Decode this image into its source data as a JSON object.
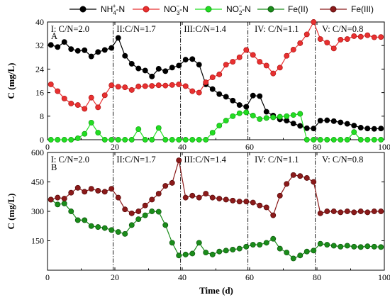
{
  "chart_data": [
    {
      "panel_label": "A",
      "type": "line",
      "ylabel": "C (mg/L)",
      "xlim": [
        0,
        100
      ],
      "ylim": [
        0,
        40
      ],
      "xticks": [
        "0",
        "20",
        "40",
        "60",
        "80",
        "100"
      ],
      "yticks": [
        "0",
        "8",
        "16",
        "24",
        "32",
        "40"
      ],
      "stage_boundaries": [
        19.5,
        39.5,
        59.5,
        79.5
      ],
      "stages": [
        {
          "x": 1,
          "label": "I: C/N=2.0"
        },
        {
          "x": 20.5,
          "label": "II:C/N=1.7"
        },
        {
          "x": 40.5,
          "label": "III:C/N=1.4"
        },
        {
          "x": 61.5,
          "label": "IV: C/N=1.1"
        },
        {
          "x": 81.5,
          "label": "V: C/N=0.8"
        }
      ],
      "series": [
        {
          "name": "NH4+-N",
          "legend_sup": "+",
          "legend_sub": "4",
          "legend_main": "NH",
          "legend_tail": "-N",
          "color": "#000000",
          "x": [
            1,
            3,
            5,
            7,
            9,
            11,
            13,
            15,
            17,
            19,
            21,
            23,
            25,
            27,
            29,
            31,
            33,
            35,
            37,
            39,
            41,
            43,
            45,
            47,
            49,
            51,
            53,
            55,
            57,
            59,
            61,
            63,
            65,
            67,
            69,
            71,
            73,
            75,
            77,
            79,
            81,
            83,
            85,
            87,
            89,
            91,
            93,
            95,
            97,
            99
          ],
          "y": [
            32.2,
            31.5,
            33.2,
            30.8,
            30.2,
            30.4,
            28.3,
            29.8,
            30.5,
            31.2,
            34.6,
            28.5,
            25.8,
            24.2,
            23.5,
            21.5,
            24.1,
            23.3,
            24.5,
            25.2,
            27.2,
            27.4,
            25.5,
            18.8,
            17.2,
            15.5,
            14.6,
            13.3,
            11.8,
            11.2,
            15.0,
            14.8,
            9.5,
            8.2,
            6.9,
            6.5,
            5.5,
            4.7,
            3.9,
            3.8,
            6.5,
            6.6,
            6.3,
            5.9,
            5.4,
            4.8,
            4.1,
            3.8,
            3.7,
            3.8
          ]
        },
        {
          "name": "NO3--N",
          "legend_sup": "−",
          "legend_sub": "3",
          "legend_main": "NO",
          "legend_tail": "-N",
          "color": "#e83030",
          "x": [
            1,
            3,
            5,
            7,
            9,
            11,
            13,
            15,
            17,
            19,
            21,
            23,
            25,
            27,
            29,
            31,
            33,
            35,
            37,
            39,
            41,
            43,
            45,
            47,
            49,
            51,
            53,
            55,
            57,
            59,
            61,
            63,
            65,
            67,
            69,
            71,
            73,
            75,
            77,
            79,
            81,
            83,
            85,
            87,
            89,
            91,
            93,
            95,
            97,
            99
          ],
          "y": [
            18.8,
            16.5,
            14.0,
            12.3,
            11.8,
            10.5,
            14.3,
            11.0,
            15.1,
            18.5,
            18.0,
            17.8,
            16.9,
            18.1,
            18.2,
            18.3,
            18.5,
            18.4,
            18.6,
            18.8,
            18.2,
            16.5,
            16.0,
            19.5,
            21.2,
            22.2,
            25.5,
            26.5,
            28.0,
            30.5,
            28.8,
            26.5,
            25.2,
            22.5,
            24.5,
            28.5,
            30.6,
            32.8,
            35.8,
            40.0,
            34.2,
            33.0,
            31.0,
            34.0,
            34.2,
            35.2,
            35.0,
            35.5,
            34.8,
            34.9
          ]
        },
        {
          "name": "NO2--N",
          "legend_sup": "−",
          "legend_sub": "2",
          "legend_main": "NO",
          "legend_tail": "-N",
          "color": "#22dd22",
          "x": [
            1,
            3,
            5,
            7,
            9,
            11,
            13,
            15,
            17,
            19,
            21,
            23,
            25,
            27,
            29,
            31,
            33,
            35,
            37,
            39,
            41,
            43,
            45,
            47,
            49,
            51,
            53,
            55,
            57,
            59,
            61,
            63,
            65,
            67,
            69,
            71,
            73,
            75,
            77,
            79,
            81,
            83,
            85,
            87,
            89,
            91,
            93,
            95,
            97,
            99
          ],
          "y": [
            0,
            0,
            0,
            0,
            0.5,
            2.0,
            5.8,
            2.4,
            0,
            0,
            0,
            0,
            0,
            3.6,
            0,
            0,
            4.0,
            0,
            0,
            0,
            0,
            0,
            0,
            0,
            2.4,
            4.8,
            6.5,
            8.0,
            9.0,
            9.3,
            8.2,
            7.0,
            7.4,
            7.6,
            7.8,
            8.0,
            8.4,
            8.8,
            0,
            0,
            0,
            0,
            0,
            0,
            0,
            2.6,
            0,
            0,
            0,
            0
          ]
        }
      ]
    },
    {
      "panel_label": "B",
      "type": "line",
      "ylabel": "C (mg/L)",
      "xlabel": "Time (d)",
      "xlim": [
        0,
        100
      ],
      "ylim": [
        0,
        600
      ],
      "xticks": [
        "0",
        "20",
        "40",
        "60",
        "80",
        "100"
      ],
      "yticks": [
        "150",
        "300",
        "450",
        "600"
      ],
      "stage_boundaries": [
        19.5,
        39.5,
        59.5,
        79.5
      ],
      "stages": [
        {
          "x": 1,
          "label": "I: C/N=2.0"
        },
        {
          "x": 20.5,
          "label": "II:C/N=1.7"
        },
        {
          "x": 40.5,
          "label": "III:C/N=1.4"
        },
        {
          "x": 61.5,
          "label": "IV: C/N=1.1"
        },
        {
          "x": 81.5,
          "label": "V: C/N=0.8"
        }
      ],
      "series": [
        {
          "name": "Fe(II)",
          "color": "#1a8c1a",
          "x": [
            1,
            3,
            5,
            7,
            9,
            11,
            13,
            15,
            17,
            19,
            21,
            23,
            25,
            27,
            29,
            31,
            33,
            35,
            37,
            39,
            41,
            43,
            45,
            47,
            49,
            51,
            53,
            55,
            57,
            59,
            61,
            63,
            65,
            67,
            69,
            71,
            73,
            75,
            77,
            79,
            81,
            83,
            85,
            87,
            89,
            91,
            93,
            95,
            97,
            99
          ],
          "y": [
            360,
            335,
            340,
            300,
            255,
            255,
            225,
            220,
            215,
            205,
            195,
            185,
            230,
            260,
            280,
            300,
            298,
            230,
            140,
            75,
            80,
            85,
            140,
            90,
            80,
            95,
            100,
            105,
            110,
            120,
            130,
            130,
            140,
            160,
            110,
            90,
            60,
            75,
            95,
            100,
            135,
            130,
            125,
            120,
            125,
            120,
            118,
            122,
            120,
            118
          ]
        },
        {
          "name": "Fe(III)",
          "color": "#8b1a1a",
          "x": [
            1,
            3,
            5,
            7,
            9,
            11,
            13,
            15,
            17,
            19,
            21,
            23,
            25,
            27,
            29,
            31,
            33,
            35,
            37,
            39,
            41,
            43,
            45,
            47,
            49,
            51,
            53,
            55,
            57,
            59,
            61,
            63,
            65,
            67,
            69,
            71,
            73,
            75,
            77,
            79,
            81,
            83,
            85,
            87,
            89,
            91,
            93,
            95,
            97,
            99
          ],
          "y": [
            360,
            370,
            365,
            395,
            420,
            400,
            415,
            405,
            400,
            415,
            370,
            310,
            290,
            300,
            330,
            360,
            390,
            430,
            445,
            560,
            370,
            380,
            370,
            390,
            370,
            365,
            360,
            355,
            350,
            350,
            345,
            330,
            320,
            280,
            380,
            440,
            485,
            480,
            470,
            450,
            290,
            300,
            300,
            295,
            300,
            295,
            300,
            295,
            300,
            300
          ]
        }
      ]
    }
  ]
}
